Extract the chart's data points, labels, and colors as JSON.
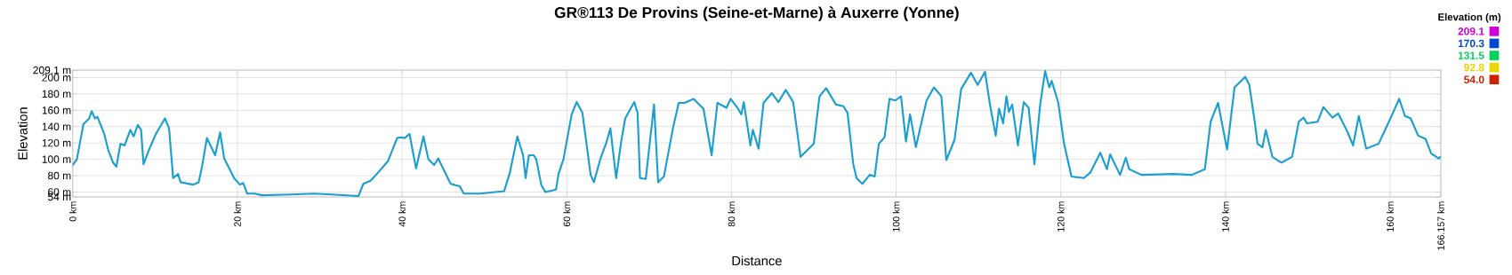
{
  "chart_data": {
    "type": "line",
    "title": "GR®113 De Provins (Seine-et-Marne) à Auxerre (Yonne)",
    "xlabel": "Distance",
    "ylabel": "Elevation",
    "clabel": "Elevation (m)",
    "clim": [
      54.0,
      209.1
    ],
    "cticks": [
      {
        "value": 54.0,
        "label": "54.0"
      },
      {
        "value": 92.8,
        "label": "92.8"
      },
      {
        "value": 131.5,
        "label": "131.5"
      },
      {
        "value": 170.3,
        "label": "170.3"
      },
      {
        "value": 209.1,
        "label": "209.1"
      }
    ],
    "x": [
      0.0,
      0.5,
      1.3,
      2.0,
      2.3,
      2.7,
      3.0,
      3.8,
      4.3,
      4.9,
      5.3,
      5.8,
      6.3,
      7.0,
      7.4,
      7.9,
      8.3,
      8.6,
      9.2,
      10.1,
      11.2,
      11.7,
      12.2,
      12.8,
      13.1,
      14.6,
      15.3,
      15.7,
      16.3,
      17.3,
      17.9,
      18.4,
      19.6,
      20.3,
      20.7,
      21.2,
      22.1,
      23.0,
      26.5,
      29.3,
      31.5,
      34.7,
      35.3,
      36.2,
      37.1,
      38.3,
      39.4,
      39.9,
      40.3,
      40.9,
      41.7,
      42.6,
      43.2,
      43.9,
      44.4,
      45.9,
      47.0,
      47.5,
      49.5,
      51.3,
      52.4,
      53.1,
      54.0,
      54.7,
      55.0,
      55.4,
      56.0,
      56.3,
      56.9,
      57.4,
      58.7,
      59.0,
      59.6,
      60.6,
      61.2,
      61.9,
      62.9,
      63.3,
      64.1,
      64.8,
      65.3,
      66.0,
      66.6,
      67.1,
      68.2,
      68.6,
      68.9,
      69.6,
      70.6,
      71.1,
      71.8,
      72.9,
      73.6,
      74.3,
      75.4,
      76.6,
      77.6,
      78.3,
      79.4,
      79.9,
      80.8,
      81.2,
      81.5,
      82.3,
      82.6,
      83.3,
      83.9,
      84.9,
      85.7,
      86.6,
      87.5,
      88.4,
      90.0,
      90.7,
      91.5,
      92.7,
      93.6,
      94.1,
      94.8,
      95.2,
      95.9,
      96.8,
      97.4,
      97.9,
      98.6,
      99.2,
      99.9,
      100.6,
      101.2,
      101.7,
      102.4,
      103.7,
      104.6,
      105.5,
      106.1,
      107.1,
      107.9,
      109.1,
      109.9,
      110.8,
      111.4,
      112.1,
      112.5,
      113.0,
      113.4,
      113.7,
      114.1,
      114.8,
      115.5,
      116.1,
      116.8,
      117.5,
      118.1,
      118.6,
      118.9,
      119.7,
      120.4,
      121.3,
      122.8,
      123.6,
      124.8,
      125.6,
      126.0,
      127.2,
      127.9,
      128.3,
      129.8,
      133.7,
      135.9,
      137.5,
      138.2,
      139.1,
      140.2,
      141.1,
      141.6,
      142.4,
      142.9,
      143.6,
      143.9,
      144.5,
      144.9,
      145.7,
      146.8,
      148.1,
      148.9,
      149.5,
      149.9,
      151.2,
      151.9,
      153.0,
      153.7,
      154.8,
      155.5,
      156.2,
      157.1,
      158.6,
      159.3,
      160.4,
      161.1,
      161.8,
      162.5,
      163.4,
      164.3,
      165.0,
      165.9,
      166.1
    ],
    "series": [
      {
        "color": "#1a9fd0",
        "values": [
          93,
          100,
          143,
          150,
          159,
          150,
          152,
          132,
          112,
          96,
          91,
          119,
          117,
          136,
          128,
          142,
          136,
          94,
          110,
          131,
          150,
          138,
          77,
          82,
          72,
          69,
          72,
          91,
          126,
          105,
          133,
          101,
          77,
          69,
          71,
          58,
          58,
          56,
          57,
          58,
          57,
          55,
          70,
          74,
          84,
          98,
          126,
          127,
          126,
          131,
          89,
          128,
          100,
          93,
          101,
          70,
          67,
          58,
          58,
          60,
          61,
          84,
          128,
          105,
          77,
          105,
          105,
          100,
          69,
          60,
          63,
          82,
          100,
          155,
          170,
          157,
          81,
          72,
          101,
          120,
          138,
          77,
          121,
          150,
          170,
          157,
          77,
          76,
          167,
          72,
          79,
          138,
          169,
          169,
          174,
          162,
          105,
          169,
          163,
          174,
          162,
          155,
          170,
          117,
          136,
          113,
          169,
          181,
          170,
          185,
          170,
          103,
          119,
          177,
          187,
          167,
          165,
          157,
          94,
          77,
          70,
          81,
          79,
          119,
          127,
          174,
          172,
          177,
          122,
          155,
          115,
          172,
          188,
          177,
          99,
          124,
          186,
          206,
          191,
          207,
          167,
          129,
          162,
          144,
          177,
          158,
          167,
          117,
          170,
          163,
          94,
          167,
          208,
          188,
          196,
          169,
          119,
          79,
          77,
          84,
          108,
          88,
          106,
          81,
          102,
          88,
          81,
          82,
          81,
          88,
          146,
          169,
          112,
          188,
          193,
          201,
          191,
          143,
          119,
          115,
          136,
          103,
          96,
          103,
          146,
          151,
          144,
          146,
          164,
          151,
          156,
          134,
          117,
          153,
          113,
          119,
          134,
          158,
          174,
          153,
          150,
          129,
          125,
          107,
          101,
          103
        ]
      }
    ],
    "xlim": [
      0,
      166.157
    ],
    "ylim": [
      54,
      209.1
    ],
    "xticks": [
      {
        "value": 0,
        "label": "0 km"
      },
      {
        "value": 20,
        "label": "20 km"
      },
      {
        "value": 40,
        "label": "40 km"
      },
      {
        "value": 60,
        "label": "60 km"
      },
      {
        "value": 80,
        "label": "80 km"
      },
      {
        "value": 100,
        "label": "100 km"
      },
      {
        "value": 120,
        "label": "120 km"
      },
      {
        "value": 140,
        "label": "140 km"
      },
      {
        "value": 160,
        "label": "160 km"
      },
      {
        "value": 166.157,
        "label": "166.157 km"
      }
    ],
    "yticks": [
      {
        "value": 54,
        "label": "54 m"
      },
      {
        "value": 60,
        "label": "60 m"
      },
      {
        "value": 80,
        "label": "80 m"
      },
      {
        "value": 100,
        "label": "100 m"
      },
      {
        "value": 120,
        "label": "120 m"
      },
      {
        "value": 140,
        "label": "140 m"
      },
      {
        "value": 160,
        "label": "160 m"
      },
      {
        "value": 180,
        "label": "180 m"
      },
      {
        "value": 200,
        "label": "200 m"
      },
      {
        "value": 209.1,
        "label": "209.1 m"
      }
    ],
    "grid": true
  }
}
